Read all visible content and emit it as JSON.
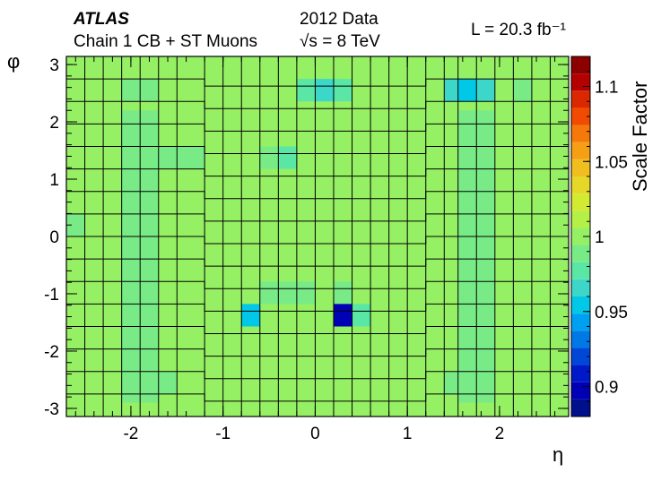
{
  "chart_data": {
    "type": "heatmap",
    "title": "",
    "experiment": "ATLAS",
    "dataset": "2012 Data",
    "selection": "Chain 1 CB + ST Muons",
    "energy": "√s = 8 TeV",
    "luminosity": "L = 20.3 fb⁻¹",
    "xlabel": "η",
    "ylabel": "φ",
    "zlabel": "Scale Factor",
    "xlim": [
      -2.7,
      2.75
    ],
    "ylim": [
      -3.14159,
      3.14159
    ],
    "zlim": [
      0.88,
      1.12
    ],
    "x_ticks": [
      "-2",
      "-1",
      "0",
      "1",
      "2"
    ],
    "y_ticks": [
      "-3",
      "-2",
      "-1",
      "0",
      "1",
      "2",
      "3"
    ],
    "z_ticks": [
      "0.9",
      "0.95",
      "1",
      "1.05",
      "1.1"
    ],
    "colormap": [
      "#000f8c",
      "#0000b4",
      "#0019c8",
      "#0046d7",
      "#0078e6",
      "#00a0f0",
      "#00c8e6",
      "#3cd7c8",
      "#5ae6a5",
      "#78eb87",
      "#96f064",
      "#b4f046",
      "#d2eb32",
      "#e6d728",
      "#f0be1e",
      "#f5a014",
      "#f5780a",
      "#f04b00",
      "#dc2800",
      "#b40000",
      "#8c0000"
    ],
    "x_edges": [
      -2.7,
      -2.5,
      -2.3,
      -2.1,
      -1.9,
      -1.7,
      -1.5,
      -1.2,
      -1.0,
      -0.8,
      -0.6,
      -0.4,
      -0.2,
      0.0,
      0.2,
      0.4,
      0.6,
      0.8,
      1.0,
      1.2,
      1.4,
      1.55,
      1.75,
      1.95,
      2.15,
      2.35,
      2.55,
      2.75
    ],
    "y_bins": 16,
    "background_value": 1.005,
    "cells": [
      {
        "x": -2.0,
        "y": 2.55,
        "value": 0.985
      },
      {
        "x": -1.8,
        "y": 2.55,
        "value": 0.985
      },
      {
        "x": 2.15,
        "y": 2.55,
        "value": 0.985
      },
      {
        "x": -0.1,
        "y": 2.55,
        "value": 0.975
      },
      {
        "x": 0.1,
        "y": 2.55,
        "value": 0.965
      },
      {
        "x": 0.3,
        "y": 2.55,
        "value": 0.975
      },
      {
        "x": 1.475,
        "y": 2.55,
        "value": 0.965
      },
      {
        "x": 1.65,
        "y": 2.55,
        "value": 0.958
      },
      {
        "x": 1.85,
        "y": 2.55,
        "value": 0.965
      },
      {
        "x": 1.65,
        "y": 1.77,
        "value": 0.985
      },
      {
        "x": 1.85,
        "y": 1.77,
        "value": 0.985
      },
      {
        "x": -1.6,
        "y": 1.37,
        "value": 0.985
      },
      {
        "x": -1.35,
        "y": 1.37,
        "value": 0.985
      },
      {
        "x": -0.5,
        "y": 1.37,
        "value": 0.985
      },
      {
        "x": -0.3,
        "y": 1.37,
        "value": 0.98
      },
      {
        "x": -1.8,
        "y": 0.98,
        "value": 0.985
      },
      {
        "x": -2.0,
        "y": 0.59,
        "value": 0.985
      },
      {
        "x": -2.6,
        "y": 0.0,
        "value": 0.985
      },
      {
        "x": -0.5,
        "y": -0.98,
        "value": 0.985
      },
      {
        "x": -0.3,
        "y": -0.98,
        "value": 0.985
      },
      {
        "x": -0.1,
        "y": -0.98,
        "value": 0.985
      },
      {
        "x": 0.3,
        "y": -0.98,
        "value": 0.985
      },
      {
        "x": -0.7,
        "y": -1.37,
        "value": 0.955
      },
      {
        "x": 0.3,
        "y": -1.37,
        "value": 0.895
      },
      {
        "x": 0.5,
        "y": -1.37,
        "value": 0.975
      },
      {
        "x": -2.0,
        "y": -2.55,
        "value": 0.985
      },
      {
        "x": -1.8,
        "y": -2.55,
        "value": 0.985
      },
      {
        "x": -1.6,
        "y": -2.55,
        "value": 0.985
      },
      {
        "x": 1.475,
        "y": -2.55,
        "value": 0.985
      },
      {
        "x": 1.65,
        "y": -2.55,
        "value": 0.985
      },
      {
        "x": 1.85,
        "y": -2.55,
        "value": 0.985
      }
    ],
    "green_columns": [
      {
        "x": -2.0,
        "from": -2.9,
        "to": 2.2
      },
      {
        "x": -1.8,
        "from": -2.9,
        "to": 2.2
      },
      {
        "x": 1.65,
        "from": -2.9,
        "to": 2.2
      },
      {
        "x": 1.85,
        "from": -2.9,
        "to": 2.2
      }
    ]
  }
}
